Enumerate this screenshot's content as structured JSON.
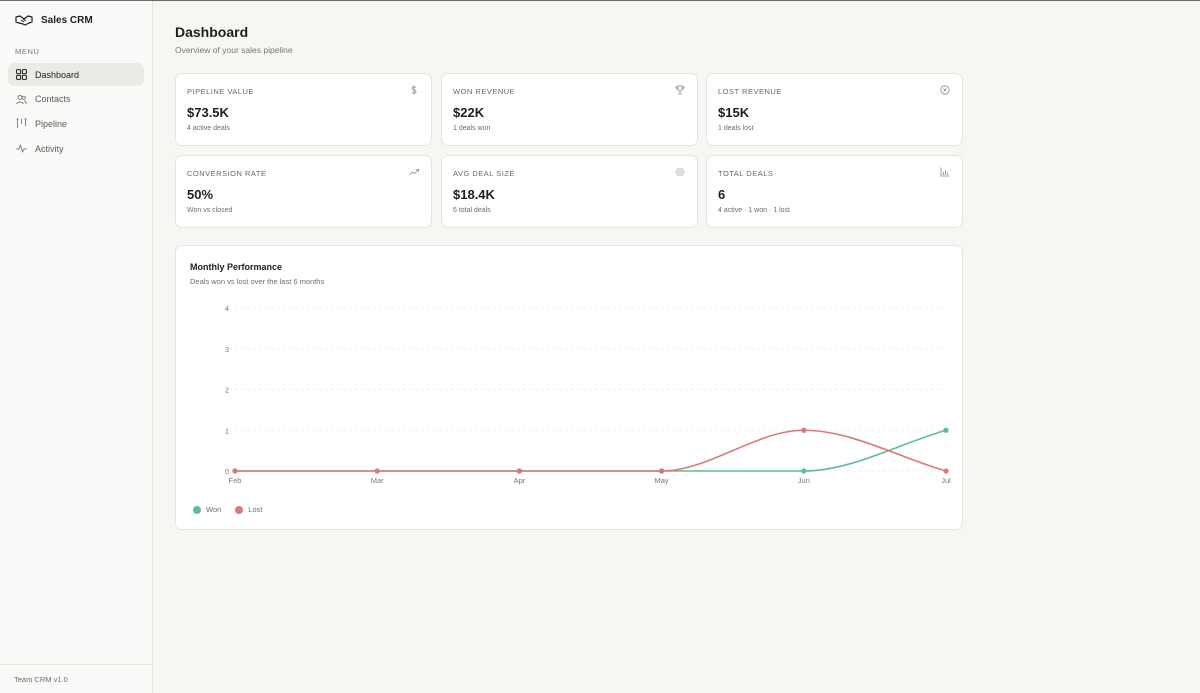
{
  "app": {
    "name": "Sales CRM",
    "footer": "Team CRM v1.0"
  },
  "sidebar": {
    "menu_label": "MENU",
    "items": [
      {
        "label": "Dashboard",
        "icon": "grid-icon",
        "active": true
      },
      {
        "label": "Contacts",
        "icon": "users-icon",
        "active": false
      },
      {
        "label": "Pipeline",
        "icon": "kanban-icon",
        "active": false
      },
      {
        "label": "Activity",
        "icon": "pulse-icon",
        "active": false
      }
    ]
  },
  "header": {
    "title": "Dashboard",
    "subtitle": "Overview of your sales pipeline"
  },
  "stats": [
    {
      "label": "PIPELINE VALUE",
      "value": "$73.5K",
      "note": "4 active deals",
      "icon": "dollar-icon"
    },
    {
      "label": "WON REVENUE",
      "value": "$22K",
      "note": "1 deals won",
      "icon": "trophy-icon"
    },
    {
      "label": "LOST REVENUE",
      "value": "$15K",
      "note": "1 deals lost",
      "icon": "x-circle-icon"
    },
    {
      "label": "CONVERSION RATE",
      "value": "50%",
      "note": "Won vs closed",
      "icon": "trend-up-icon"
    },
    {
      "label": "AVG DEAL SIZE",
      "value": "$18.4K",
      "note": "6 total deals",
      "icon": "target-icon"
    },
    {
      "label": "TOTAL DEALS",
      "value": "6",
      "note": "4 active · 1 won · 1 lost",
      "icon": "bar-chart-icon"
    }
  ],
  "chart": {
    "title": "Monthly Performance",
    "subtitle": "Deals won vs lost over the last 6 months"
  },
  "chart_data": {
    "type": "line",
    "categories": [
      "Feb",
      "Mar",
      "Apr",
      "May",
      "Jun",
      "Jul"
    ],
    "series": [
      {
        "name": "Won",
        "values": [
          0,
          0,
          0,
          0,
          0,
          1
        ],
        "color": "#5bbf92"
      },
      {
        "name": "Lost",
        "values": [
          0,
          0,
          0,
          0,
          1,
          0
        ],
        "color": "#d9797a"
      }
    ],
    "yticks": [
      0,
      1,
      2,
      3,
      4
    ],
    "ylim": [
      0,
      4
    ],
    "grid": true,
    "legend": "bottom-left"
  }
}
